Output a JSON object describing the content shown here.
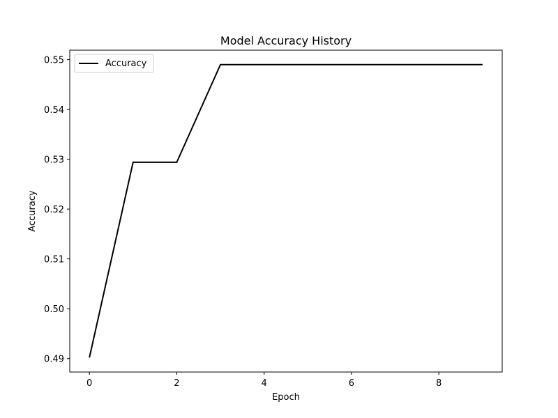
{
  "chart_data": {
    "type": "line",
    "title": "Model Accuracy History",
    "xlabel": "Epoch",
    "ylabel": "Accuracy",
    "x": [
      0,
      1,
      2,
      3,
      4,
      5,
      6,
      7,
      8,
      9
    ],
    "series": [
      {
        "name": "Accuracy",
        "color": "#000000",
        "values": [
          0.4902,
          0.5294,
          0.5294,
          0.549,
          0.549,
          0.549,
          0.549,
          0.549,
          0.549,
          0.549
        ]
      }
    ],
    "xlim": [
      -0.45,
      9.45
    ],
    "ylim": [
      0.4873,
      0.5519
    ],
    "xticks": [
      0,
      2,
      4,
      6,
      8
    ],
    "xtick_labels": [
      "0",
      "2",
      "4",
      "6",
      "8"
    ],
    "yticks": [
      0.49,
      0.5,
      0.51,
      0.52,
      0.53,
      0.54,
      0.55
    ],
    "ytick_labels": [
      "0.49",
      "0.50",
      "0.51",
      "0.52",
      "0.53",
      "0.54",
      "0.55"
    ],
    "grid": false,
    "legend_position": "top-left"
  }
}
